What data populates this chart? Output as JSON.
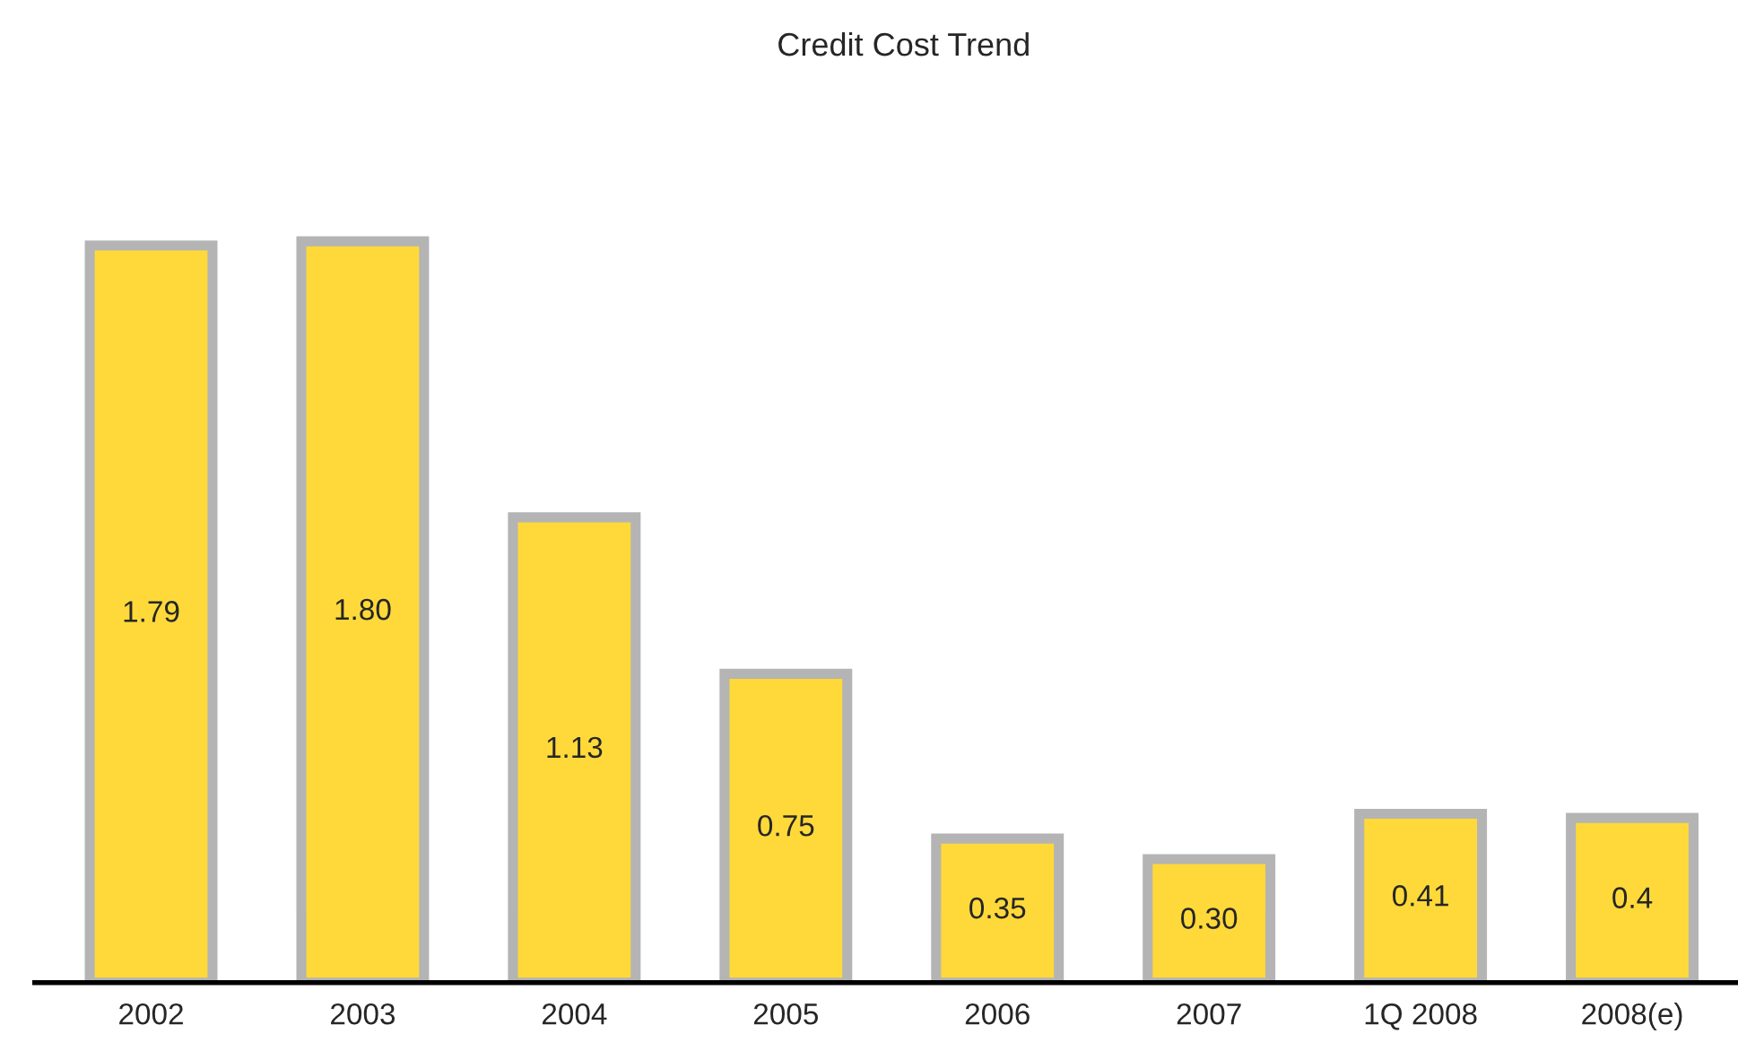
{
  "chart_data": {
    "type": "bar",
    "title": "Credit Cost Trend",
    "categories": [
      "2002",
      "2003",
      "2004",
      "2005",
      "2006",
      "2007",
      "1Q 2008",
      "2008(e)"
    ],
    "values": [
      1.79,
      1.8,
      1.13,
      0.75,
      0.35,
      0.3,
      0.41,
      0.4
    ],
    "value_labels": [
      "1.79",
      "1.80",
      "1.13",
      "0.75",
      "0.35",
      "0.30",
      "0.41",
      "0.4"
    ],
    "color": "#ffd93a",
    "grid": false,
    "legend": false
  }
}
